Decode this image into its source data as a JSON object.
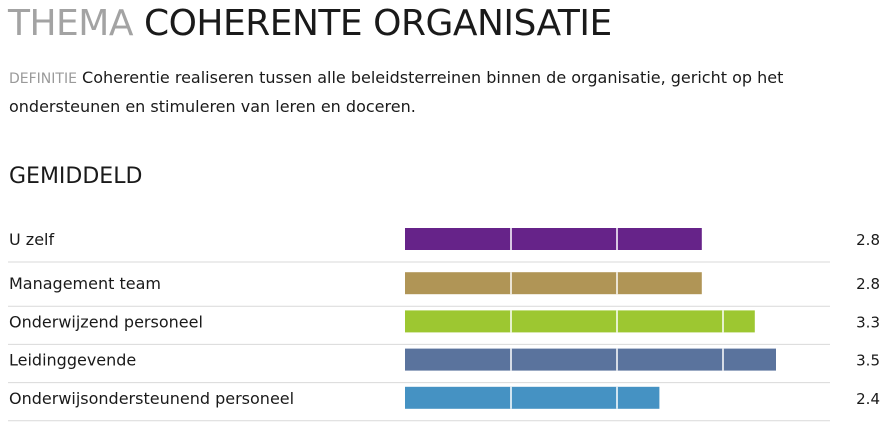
{
  "header": {
    "prefix": "THEMA",
    "title": "COHERENTE ORGANISATIE"
  },
  "definition": {
    "label": "DEFINITIE",
    "text": "Coherentie realiseren tussen alle beleidsterreinen binnen de organisatie, gericht op het ondersteunen en stimuleren van leren en doceren."
  },
  "section": {
    "title": "GEMIDDELD"
  },
  "chart_data": {
    "type": "bar",
    "orientation": "horizontal",
    "categories": [
      "U zelf",
      "Management team",
      "Onderwijzend personeel",
      "Leidinggevende",
      "Onderwijsondersteunend personeel"
    ],
    "values": [
      2.8,
      2.8,
      3.3,
      3.5,
      2.4
    ],
    "value_labels": [
      "2.8",
      "2.8",
      "3.3",
      "3.5",
      "2.4"
    ],
    "colors": [
      "#662389",
      "#b09556",
      "#9dc731",
      "#5a739d",
      "#4592c3"
    ],
    "xlim": [
      0,
      4
    ],
    "grid": true,
    "title": "",
    "xlabel": "",
    "ylabel": ""
  }
}
